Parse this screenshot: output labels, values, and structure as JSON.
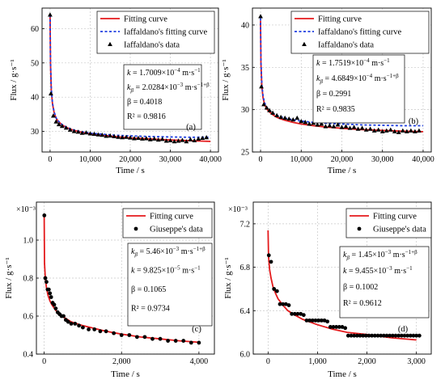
{
  "chart_data": [
    {
      "type": "scatter",
      "panel_label": "(a)",
      "xlabel": "Time / s",
      "ylabel": "Flux / g·s⁻¹",
      "xlim": [
        -2000,
        42000
      ],
      "ylim": [
        24,
        66
      ],
      "x_ticks": [
        0,
        10000,
        20000,
        30000,
        40000
      ],
      "x_tick_labels": [
        "0",
        "10,000",
        "20,000",
        "30,000",
        "40,000"
      ],
      "y_ticks": [
        30,
        40,
        50,
        60
      ],
      "y_tick_labels": [
        "30",
        "40",
        "50",
        "60"
      ],
      "grid": true,
      "legend_position": "top-right",
      "legend": [
        {
          "label": "Fitting curve",
          "style": "line",
          "color": "#e41a1c"
        },
        {
          "label": "Iaffaldano's fitting curve",
          "style": "dashed",
          "color": "#1f3fe0"
        },
        {
          "label": "Iaffaldano's data",
          "style": "triangle",
          "color": "#000000"
        }
      ],
      "stats": [
        {
          "name": "k",
          "sup": "",
          "value": " = 1.7009×10",
          "exp": "−4",
          "unit": " m·s",
          "unit_exp": "−1"
        },
        {
          "name": "k",
          "sub": "β",
          "value": " = 2.0284×10",
          "exp": "−3",
          "unit": " m·s",
          "unit_exp": "−1+β"
        },
        {
          "name": "β",
          "value": " = 0.4018"
        },
        {
          "name": "R²",
          "value": " = 0.9816"
        }
      ],
      "series": [
        {
          "name": "Fitting curve",
          "style": "line",
          "color": "#e41a1c",
          "x": [
            0,
            100,
            300,
            600,
            1000,
            1500,
            2000,
            3000,
            4000,
            5000,
            6000,
            8000,
            10000,
            13000,
            16000,
            20000,
            25000,
            30000,
            35000,
            40000
          ],
          "y": [
            63.5,
            50.0,
            42.0,
            38.0,
            35.5,
            33.9,
            33.0,
            31.9,
            31.2,
            30.7,
            30.3,
            29.7,
            29.3,
            28.9,
            28.5,
            28.1,
            27.8,
            27.5,
            27.3,
            27.1
          ]
        },
        {
          "name": "Iaffaldano's fitting curve",
          "style": "dashed",
          "color": "#1f3fe0",
          "x": [
            0,
            100,
            300,
            600,
            1000,
            1500,
            2000,
            3000,
            4000,
            5000,
            6000,
            8000,
            10000,
            13000,
            16000,
            20000,
            25000,
            30000,
            35000,
            40000
          ],
          "y": [
            64.0,
            50.5,
            42.5,
            38.2,
            35.7,
            34.0,
            33.1,
            32.0,
            31.3,
            30.8,
            30.4,
            29.9,
            29.5,
            29.2,
            28.9,
            28.7,
            28.5,
            28.4,
            28.3,
            28.3
          ]
        },
        {
          "name": "Iaffaldano's data",
          "style": "triangle",
          "color": "#000000",
          "x": [
            0,
            200,
            800,
            1500,
            2200,
            3000,
            4000,
            5000,
            6000,
            7000,
            8000,
            9000,
            10000,
            11000,
            12000,
            13000,
            14000,
            15000,
            16000,
            17000,
            18000,
            19000,
            20000,
            21000,
            22000,
            23000,
            24000,
            25000,
            26000,
            27000,
            28000,
            29000,
            30000,
            31000,
            32000,
            33000,
            34000,
            35000,
            36000,
            37000,
            38000,
            39000
          ],
          "y": [
            64,
            41,
            34.5,
            32.8,
            32.0,
            31.5,
            31.0,
            30.4,
            30.0,
            29.8,
            29.5,
            29.6,
            29.3,
            29.2,
            29.0,
            28.9,
            28.6,
            28.7,
            28.5,
            28.3,
            28.2,
            28.3,
            28.1,
            27.9,
            28.0,
            27.8,
            27.9,
            27.6,
            27.8,
            27.5,
            27.7,
            27.2,
            27.3,
            27.0,
            27.2,
            27.4,
            27.0,
            27.6,
            27.3,
            27.8,
            28.0,
            28.2
          ]
        }
      ]
    },
    {
      "type": "scatter",
      "panel_label": "(b)",
      "xlabel": "Time / s",
      "ylabel": "Flux / g·s⁻¹",
      "xlim": [
        -2000,
        42000
      ],
      "ylim": [
        25,
        42
      ],
      "x_ticks": [
        0,
        10000,
        20000,
        30000,
        40000
      ],
      "x_tick_labels": [
        "0",
        "10,000",
        "20,000",
        "30,000",
        "40,000"
      ],
      "y_ticks": [
        25,
        30,
        35,
        40
      ],
      "y_tick_labels": [
        "25",
        "30",
        "35",
        "40"
      ],
      "grid": true,
      "legend_position": "top-right",
      "legend": [
        {
          "label": "Fitting curve",
          "style": "line",
          "color": "#e41a1c"
        },
        {
          "label": "Iaffaldano's fitting curve",
          "style": "dashed",
          "color": "#1f3fe0"
        },
        {
          "label": "Iaffaldano's data",
          "style": "triangle",
          "color": "#000000"
        }
      ],
      "stats": [
        {
          "name": "k",
          "value": " = 1.7519×10",
          "exp": "−4",
          "unit": " m·s",
          "unit_exp": "−1"
        },
        {
          "name": "k",
          "sub": "β",
          "value": " = 4.6849×10",
          "exp": "−4",
          "unit": " m·s",
          "unit_exp": "−1+β"
        },
        {
          "name": "β",
          "value": " = 0.2991"
        },
        {
          "name": "R²",
          "value": " = 0.9835"
        }
      ],
      "series": [
        {
          "name": "Fitting curve",
          "style": "line",
          "color": "#e41a1c",
          "x": [
            0,
            100,
            300,
            600,
            1000,
            1500,
            2000,
            3000,
            4000,
            5000,
            6000,
            8000,
            10000,
            13000,
            16000,
            20000,
            25000,
            30000,
            35000,
            40000
          ],
          "y": [
            40.5,
            35.5,
            32.8,
            31.4,
            30.6,
            30.1,
            29.8,
            29.4,
            29.1,
            28.9,
            28.75,
            28.5,
            28.3,
            28.1,
            27.95,
            27.8,
            27.65,
            27.55,
            27.45,
            27.4
          ]
        },
        {
          "name": "Iaffaldano's fitting curve",
          "style": "dashed",
          "color": "#1f3fe0",
          "x": [
            0,
            100,
            300,
            600,
            1000,
            1500,
            2000,
            3000,
            4000,
            5000,
            6000,
            8000,
            10000,
            13000,
            16000,
            20000,
            25000,
            30000,
            35000,
            40000
          ],
          "y": [
            40.8,
            35.8,
            33.0,
            31.6,
            30.8,
            30.3,
            30.0,
            29.6,
            29.35,
            29.15,
            29.0,
            28.8,
            28.65,
            28.5,
            28.4,
            28.3,
            28.2,
            28.15,
            28.1,
            28.1
          ]
        },
        {
          "name": "Iaffaldano's data",
          "style": "triangle",
          "color": "#000000",
          "x": [
            0,
            200,
            800,
            1500,
            2200,
            3000,
            4000,
            5000,
            6000,
            7000,
            8000,
            9000,
            10000,
            11000,
            12000,
            13000,
            14000,
            15000,
            16000,
            17000,
            18000,
            19000,
            20000,
            21000,
            22000,
            23000,
            24000,
            25000,
            26000,
            27000,
            28000,
            29000,
            30000,
            31000,
            32000,
            33000,
            34000,
            35000,
            36000,
            37000,
            38000,
            39000
          ],
          "y": [
            41,
            32.7,
            30.6,
            30.2,
            29.9,
            29.6,
            29.3,
            29.1,
            29.0,
            28.9,
            28.8,
            29.0,
            28.6,
            28.5,
            28.3,
            28.4,
            28.2,
            28.3,
            28.0,
            28.1,
            28.0,
            28.2,
            27.9,
            28.0,
            27.8,
            27.9,
            27.7,
            27.8,
            27.6,
            27.7,
            27.5,
            27.6,
            27.4,
            27.5,
            27.6,
            27.4,
            27.3,
            27.5,
            27.4,
            27.5,
            27.4,
            27.5
          ]
        }
      ]
    },
    {
      "type": "scatter",
      "panel_label": "(c)",
      "xlabel": "Time / s",
      "ylabel": "Flux / g·s⁻¹",
      "y_multiplier": "×10⁻³",
      "xlim": [
        -200,
        4400
      ],
      "ylim": [
        0.4,
        1.2
      ],
      "x_ticks": [
        0,
        2000,
        4000
      ],
      "x_tick_labels": [
        "0",
        "2,000",
        "4,000"
      ],
      "y_ticks": [
        0.4,
        0.6,
        0.8,
        1.0
      ],
      "y_tick_labels": [
        "0.4",
        "0.6",
        "0.8",
        "1.0"
      ],
      "grid": true,
      "legend_position": "top-right",
      "legend": [
        {
          "label": "Fitting curve",
          "style": "line",
          "color": "#e41a1c"
        },
        {
          "label": "Giuseppe's data",
          "style": "circle",
          "color": "#000000"
        }
      ],
      "stats": [
        {
          "name": "k",
          "sub": "β",
          "value": " = 5.46×10",
          "exp": "−3",
          "unit": " m·s",
          "unit_exp": "−1+β"
        },
        {
          "name": "k",
          "value": " = 9.825×10",
          "exp": "−5",
          "unit": " m·s",
          "unit_exp": "−1"
        },
        {
          "name": "β",
          "value": " = 0.1065"
        },
        {
          "name": "R²",
          "value": " = 0.9734"
        }
      ],
      "series": [
        {
          "name": "Fitting curve",
          "style": "line",
          "color": "#e41a1c",
          "x": [
            0,
            10,
            30,
            60,
            100,
            150,
            200,
            300,
            400,
            500,
            700,
            1000,
            1300,
            1600,
            2000,
            2500,
            3000,
            3500,
            4000
          ],
          "y": [
            1.13,
            0.88,
            0.8,
            0.75,
            0.71,
            0.68,
            0.66,
            0.63,
            0.61,
            0.595,
            0.57,
            0.55,
            0.535,
            0.52,
            0.505,
            0.49,
            0.48,
            0.47,
            0.462
          ]
        },
        {
          "name": "Giuseppe's data",
          "style": "circle",
          "color": "#000000",
          "x": [
            5,
            30,
            60,
            90,
            120,
            150,
            180,
            220,
            260,
            300,
            350,
            400,
            450,
            500,
            560,
            620,
            700,
            800,
            900,
            1000,
            1150,
            1300,
            1450,
            1600,
            1800,
            2000,
            2200,
            2400,
            2600,
            2800,
            3000,
            3200,
            3400,
            3600,
            3800,
            4000
          ],
          "y": [
            1.13,
            0.8,
            0.78,
            0.74,
            0.74,
            0.72,
            0.7,
            0.67,
            0.66,
            0.64,
            0.62,
            0.61,
            0.6,
            0.6,
            0.58,
            0.57,
            0.56,
            0.56,
            0.55,
            0.54,
            0.53,
            0.53,
            0.52,
            0.52,
            0.51,
            0.5,
            0.5,
            0.49,
            0.49,
            0.48,
            0.48,
            0.47,
            0.47,
            0.47,
            0.46,
            0.46
          ]
        }
      ]
    },
    {
      "type": "scatter",
      "panel_label": "(d)",
      "xlabel": "Time / s",
      "ylabel": "Flux / g·s⁻¹",
      "y_multiplier": "×10⁻³",
      "xlim": [
        -300,
        3300
      ],
      "ylim": [
        6.0,
        7.4
      ],
      "x_ticks": [
        0,
        1000,
        2000,
        3000
      ],
      "x_tick_labels": [
        "0",
        "1,000",
        "2,000",
        "3,000"
      ],
      "y_ticks": [
        6.0,
        6.4,
        6.8,
        7.2
      ],
      "y_tick_labels": [
        "6.0",
        "6.4",
        "6.8",
        "7.2"
      ],
      "grid": true,
      "legend_position": "top-right",
      "legend": [
        {
          "label": "Fitting curve",
          "style": "line",
          "color": "#e41a1c"
        },
        {
          "label": "Giuseppe's data",
          "style": "circle",
          "color": "#000000"
        }
      ],
      "stats": [
        {
          "name": "k",
          "sub": "β",
          "value": " = 1.45×10",
          "exp": "−3",
          "unit": " m·s",
          "unit_exp": "−1+β"
        },
        {
          "name": "k",
          "value": " = 9.455×10",
          "exp": "−3",
          "unit": " m·s",
          "unit_exp": "−1"
        },
        {
          "name": "β",
          "value": " = 0.1002"
        },
        {
          "name": "R²",
          "value": " = 0.9612"
        }
      ],
      "series": [
        {
          "name": "Fitting curve",
          "style": "line",
          "color": "#e41a1c",
          "x": [
            0,
            10,
            30,
            60,
            100,
            150,
            200,
            300,
            400,
            500,
            700,
            1000,
            1300,
            1600,
            2000,
            2500,
            3000
          ],
          "y": [
            7.14,
            6.9,
            6.78,
            6.7,
            6.62,
            6.56,
            6.51,
            6.45,
            6.4,
            6.37,
            6.32,
            6.27,
            6.23,
            6.2,
            6.18,
            6.15,
            6.13
          ]
        },
        {
          "name": "Giuseppe's data",
          "style": "circle",
          "color": "#000000",
          "x": [
            15,
            60,
            120,
            180,
            240,
            300,
            360,
            420,
            480,
            540,
            600,
            660,
            720,
            780,
            840,
            900,
            960,
            1020,
            1080,
            1140,
            1200,
            1260,
            1320,
            1380,
            1440,
            1500,
            1560,
            1620,
            1680,
            1740,
            1800,
            1860,
            1920,
            1980,
            2040,
            2100,
            2160,
            2220,
            2280,
            2340,
            2400,
            2460,
            2520,
            2580,
            2640,
            2700,
            2760,
            2820,
            2880,
            2940,
            3000,
            3060
          ],
          "y": [
            6.91,
            6.85,
            6.6,
            6.58,
            6.46,
            6.46,
            6.46,
            6.45,
            6.37,
            6.37,
            6.37,
            6.37,
            6.36,
            6.31,
            6.31,
            6.31,
            6.31,
            6.31,
            6.31,
            6.31,
            6.3,
            6.25,
            6.25,
            6.25,
            6.25,
            6.25,
            6.24,
            6.17,
            6.17,
            6.17,
            6.17,
            6.17,
            6.17,
            6.17,
            6.17,
            6.17,
            6.17,
            6.17,
            6.17,
            6.17,
            6.17,
            6.17,
            6.17,
            6.17,
            6.17,
            6.17,
            6.17,
            6.17,
            6.17,
            6.17,
            6.17,
            6.17
          ]
        }
      ]
    }
  ]
}
